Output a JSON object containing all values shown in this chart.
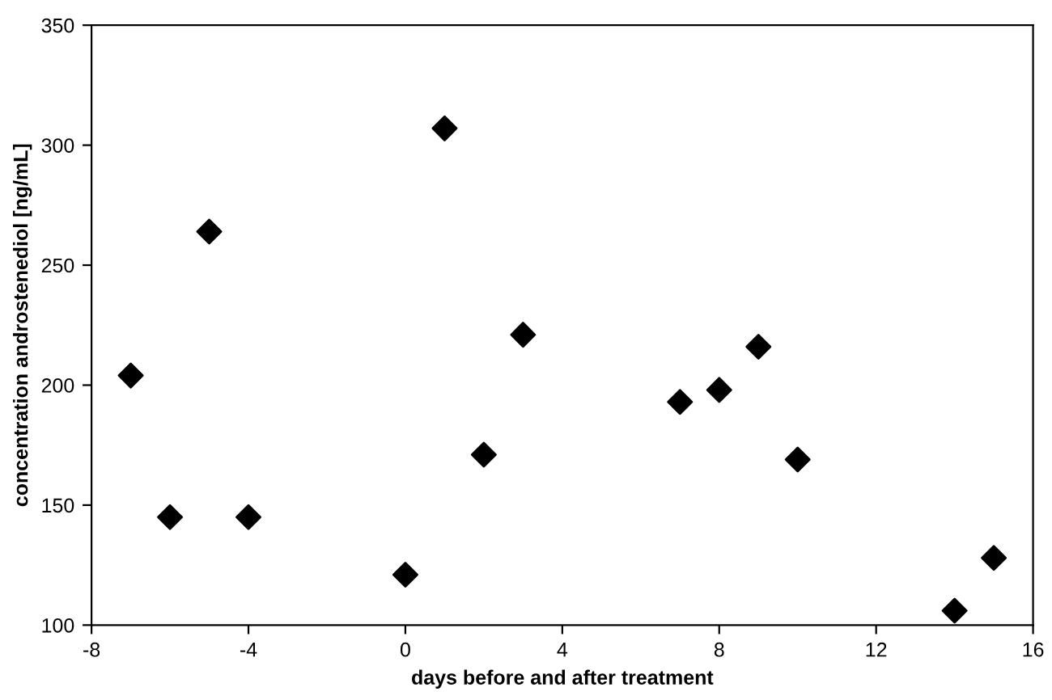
{
  "chart_data": {
    "type": "scatter",
    "xlabel": "days before and after treatment",
    "ylabel": "concentration androstenediol [ng/mL]",
    "x": [
      -7,
      -6,
      -5,
      -4,
      0,
      1,
      2,
      3,
      7,
      8,
      9,
      10,
      14,
      15
    ],
    "series": [
      {
        "color": "#000000",
        "values": [
          204,
          145,
          264,
          145,
          121,
          307,
          171,
          221,
          193,
          198,
          216,
          169,
          106,
          128
        ]
      }
    ],
    "marker": "diamond",
    "xlim": [
      -8,
      16
    ],
    "xticks": [
      -8,
      -4,
      0,
      4,
      8,
      12,
      16
    ],
    "ylim": [
      100,
      350
    ],
    "yticks": [
      100,
      150,
      200,
      250,
      300,
      350
    ],
    "grid": false,
    "legend": false
  }
}
